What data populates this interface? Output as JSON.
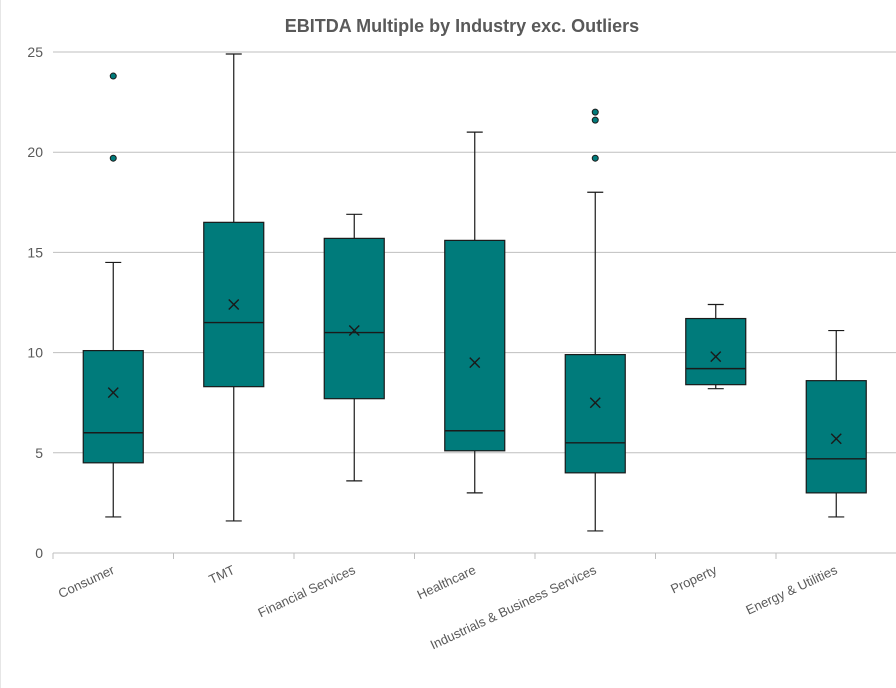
{
  "chart_data": {
    "type": "box",
    "title": "EBITDA Multiple by Industry exc. Outliers",
    "xlabel": "",
    "ylabel": "",
    "ylim": [
      0,
      25
    ],
    "yticks": [
      0,
      5,
      10,
      15,
      20,
      25
    ],
    "grid": true,
    "legend": "none",
    "colors": {
      "box_fill": "#007b7b",
      "box_stroke": "#1a1a1a",
      "outlier_fill": "#007b7b",
      "grid": "#bfbfbf",
      "axis": "#bfbfbf",
      "text": "#595959",
      "title": "#595959"
    },
    "categories": [
      "Consumer",
      "TMT",
      "Financial Services",
      "Healthcare",
      "Industrials & Business Services",
      "Property",
      "Energy & Utilities"
    ],
    "boxes": [
      {
        "category": "Consumer",
        "min": 1.8,
        "q1": 4.5,
        "median": 6.0,
        "q3": 10.1,
        "max": 14.5,
        "mean": 8.0,
        "outliers": [
          19.7,
          23.8
        ]
      },
      {
        "category": "TMT",
        "min": 1.6,
        "q1": 8.3,
        "median": 11.5,
        "q3": 16.5,
        "max": 24.9,
        "mean": 12.4,
        "outliers": []
      },
      {
        "category": "Financial Services",
        "min": 3.6,
        "q1": 7.7,
        "median": 11.0,
        "q3": 15.7,
        "max": 16.9,
        "mean": 11.1,
        "outliers": []
      },
      {
        "category": "Healthcare",
        "min": 3.0,
        "q1": 5.1,
        "median": 6.1,
        "q3": 15.6,
        "max": 21.0,
        "mean": 9.5,
        "outliers": []
      },
      {
        "category": "Industrials & Business Services",
        "min": 1.1,
        "q1": 4.0,
        "median": 5.5,
        "q3": 9.9,
        "max": 18.0,
        "mean": 7.5,
        "outliers": [
          19.7,
          21.6,
          22.0
        ]
      },
      {
        "category": "Property",
        "min": 8.2,
        "q1": 8.4,
        "median": 9.2,
        "q3": 11.7,
        "max": 12.4,
        "mean": 9.8,
        "outliers": []
      },
      {
        "category": "Energy & Utilities",
        "min": 1.8,
        "q1": 3.0,
        "median": 4.7,
        "q3": 8.6,
        "max": 11.1,
        "mean": 5.7,
        "outliers": []
      }
    ]
  }
}
